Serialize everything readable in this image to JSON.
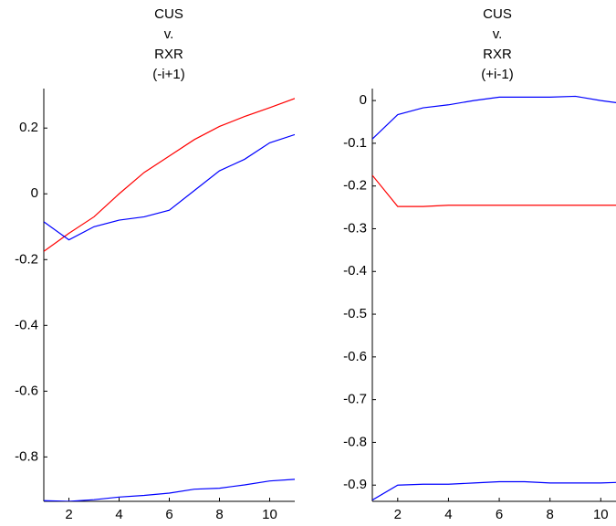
{
  "chart_data": [
    {
      "type": "line",
      "title": [
        "CUS",
        "v.",
        "RXR",
        "(-i+1)"
      ],
      "x": [
        1,
        2,
        3,
        4,
        5,
        6,
        7,
        8,
        9,
        10,
        11
      ],
      "series": [
        {
          "color": "#ff0000",
          "values": [
            -0.175,
            -0.12,
            -0.07,
            0.0,
            0.065,
            0.115,
            0.165,
            0.205,
            0.235,
            0.262,
            0.29
          ]
        },
        {
          "color": "#0000ff",
          "values": [
            -0.085,
            -0.14,
            -0.1,
            -0.08,
            -0.07,
            -0.05,
            0.01,
            0.07,
            0.105,
            0.155,
            0.18
          ]
        },
        {
          "color": "#0000ff",
          "values": [
            -0.933,
            -0.935,
            -0.93,
            -0.922,
            -0.917,
            -0.91,
            -0.898,
            -0.895,
            -0.885,
            -0.873,
            -0.868
          ]
        }
      ],
      "xlim": [
        1,
        11
      ],
      "xticks": [
        2,
        4,
        6,
        8,
        10
      ],
      "ylim": [
        -0.935,
        0.32
      ],
      "yticks": [
        -0.8,
        -0.6,
        -0.4,
        -0.2,
        0,
        0.2
      ]
    },
    {
      "type": "line",
      "title": [
        "CUS",
        "v.",
        "RXR",
        "(+i-1)"
      ],
      "x": [
        1,
        2,
        3,
        4,
        5,
        6,
        7,
        8,
        9,
        10,
        11
      ],
      "series": [
        {
          "color": "#0000ff",
          "values": [
            -0.09,
            -0.033,
            -0.017,
            -0.01,
            0.0,
            0.008,
            0.008,
            0.008,
            0.01,
            0.0,
            -0.008
          ]
        },
        {
          "color": "#ff0000",
          "values": [
            -0.175,
            -0.248,
            -0.248,
            -0.245,
            -0.245,
            -0.245,
            -0.245,
            -0.245,
            -0.245,
            -0.245,
            -0.245
          ]
        },
        {
          "color": "#0000ff",
          "values": [
            -0.935,
            -0.9,
            -0.898,
            -0.898,
            -0.895,
            -0.892,
            -0.892,
            -0.895,
            -0.895,
            -0.895,
            -0.893
          ]
        }
      ],
      "xlim": [
        1,
        10.6
      ],
      "xticks": [
        2,
        4,
        6,
        8,
        10
      ],
      "ylim": [
        -0.938,
        0.028
      ],
      "yticks": [
        -0.9,
        -0.8,
        -0.7,
        -0.6,
        -0.5,
        -0.4,
        -0.3,
        -0.2,
        -0.1,
        0
      ]
    }
  ]
}
